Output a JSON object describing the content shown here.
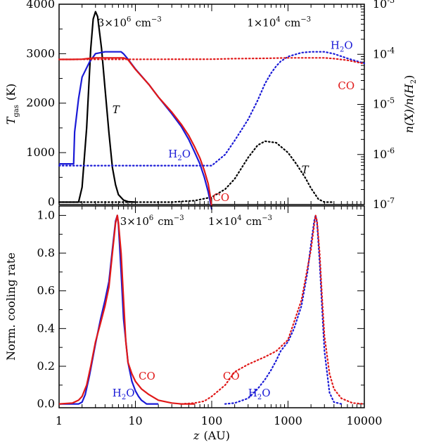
{
  "colors": {
    "T": "#000000",
    "H2O": "#1a1ad6",
    "CO": "#e01818"
  },
  "chart_data": [
    {
      "id": "top",
      "type": "line",
      "xscale": "log",
      "xlim": [
        1,
        10000
      ],
      "ylim": [
        -50,
        4000
      ],
      "y2scale": "log",
      "y2lim": [
        1e-07,
        0.001
      ],
      "ylabel": {
        "main": "T",
        "sub": "gas",
        "unit": "(K)"
      },
      "y2label": {
        "pre": "n(X)/n(H",
        "sub": "2",
        "post": ")"
      },
      "yticks": [
        0,
        1000,
        2000,
        3000,
        4000
      ],
      "y2ticks": [
        {
          "value": 1e-07,
          "base": "10",
          "exp": "-7"
        },
        {
          "value": 1e-06,
          "base": "10",
          "exp": "-6"
        },
        {
          "value": 1e-05,
          "base": "10",
          "exp": "-5"
        },
        {
          "value": 0.0001,
          "base": "10",
          "exp": "-4"
        },
        {
          "value": 0.001,
          "base": "10",
          "exp": "-3"
        }
      ],
      "series": [
        {
          "name": "T (3e6 cm^-3)",
          "color": "T",
          "dash": false,
          "axis": "left",
          "x": [
            1.0,
            1.8,
            2.0,
            2.3,
            2.6,
            2.8,
            3.0,
            3.2,
            3.6,
            4.0,
            4.5,
            5.0,
            5.5,
            6.0,
            7.0,
            8.0,
            10.0
          ],
          "y": [
            0,
            0,
            300,
            1500,
            3100,
            3700,
            3850,
            3750,
            3100,
            2300,
            1400,
            700,
            350,
            150,
            40,
            10,
            0
          ]
        },
        {
          "name": "T (1e4 cm^-3)",
          "color": "T",
          "dash": true,
          "axis": "left",
          "x": [
            1.0,
            10,
            30,
            60,
            100,
            150,
            200,
            300,
            400,
            500,
            700,
            1000,
            1300,
            1700,
            2000,
            2500,
            3000,
            4000
          ],
          "y": [
            0,
            0,
            0,
            30,
            100,
            260,
            470,
            900,
            1150,
            1230,
            1200,
            1000,
            760,
            480,
            280,
            60,
            0,
            0
          ]
        },
        {
          "name": "H2O (3e6 cm^-3)",
          "color": "H2O",
          "dash": false,
          "axis": "right",
          "x": [
            1.0,
            1.55,
            1.6,
            1.8,
            2.0,
            2.5,
            3.0,
            4.0,
            6.5,
            7.0,
            8.0,
            10,
            15,
            20,
            30,
            40,
            50,
            60,
            70,
            80,
            90,
            95,
            100
          ],
          "y": [
            6.5e-07,
            6.5e-07,
            2.8e-06,
            1.3e-05,
            3.5e-05,
            7e-05,
            0.000103,
            0.000112,
            0.000112,
            0.000102,
            8e-05,
            5.1e-05,
            2.5e-05,
            1.4e-05,
            6.5e-06,
            3.6e-06,
            2e-06,
            1.1e-06,
            6.5e-07,
            3.5e-07,
            1.8e-07,
            1.2e-07,
            8e-08
          ]
        },
        {
          "name": "CO (3e6 cm^-3)",
          "color": "CO",
          "dash": false,
          "axis": "right",
          "x": [
            1.0,
            1.5,
            2.0,
            2.5,
            3.0,
            5.0,
            7.0,
            8.0,
            10,
            15,
            20,
            30,
            40,
            50,
            60,
            70,
            80,
            90,
            95,
            100
          ],
          "y": [
            7.9e-05,
            7.9e-05,
            8e-05,
            8.3e-05,
            8.5e-05,
            8.5e-05,
            8.5e-05,
            7.8e-05,
            5e-05,
            2.5e-05,
            1.4e-05,
            7e-06,
            4e-06,
            2.4e-06,
            1.4e-06,
            8.5e-07,
            4.8e-07,
            2.6e-07,
            1.6e-07,
            9e-08
          ]
        },
        {
          "name": "H2O (1e4 cm^-3)",
          "color": "H2O",
          "dash": true,
          "axis": "right",
          "x": [
            1.0,
            100,
            150,
            200,
            300,
            400,
            500,
            600,
            700,
            800,
            1000,
            1500,
            2000,
            3000,
            4000,
            6000,
            10000
          ],
          "y": [
            6e-07,
            6e-07,
            1e-06,
            1.9e-06,
            5e-06,
            1.2e-05,
            2.6e-05,
            4.2e-05,
            5.8e-05,
            7.2e-05,
            9e-05,
            0.000108,
            0.000112,
            0.000112,
            0.000102,
            8.3e-05,
            6.6e-05
          ]
        },
        {
          "name": "CO (1e4 cm^-3)",
          "color": "CO",
          "dash": true,
          "axis": "right",
          "x": [
            1.0,
            100,
            200,
            500,
            1000,
            2000,
            3000,
            4000,
            6000,
            10000
          ],
          "y": [
            7.9e-05,
            8e-05,
            8.2e-05,
            8.3e-05,
            8.5e-05,
            8.5e-05,
            8.5e-05,
            8.2e-05,
            7.6e-05,
            6.5e-05
          ]
        }
      ],
      "annotations": [
        {
          "kind": "density",
          "coef": "3×10",
          "exp": "6",
          "unit": "cm",
          "uexp": "−3",
          "x": 3.2,
          "y": 3550,
          "color": "T"
        },
        {
          "kind": "density",
          "coef": "1×10",
          "exp": "4",
          "unit": "cm",
          "uexp": "−3",
          "x": 290,
          "y": 3550,
          "color": "T"
        },
        {
          "kind": "species",
          "main": "H",
          "sub": "2",
          "post": "O",
          "x": 3600,
          "y": 3100,
          "color": "H2O"
        },
        {
          "kind": "species",
          "main": "CO",
          "x": 4500,
          "y": 2280,
          "color": "CO"
        },
        {
          "kind": "species",
          "main": "T",
          "italic": true,
          "x": 5.0,
          "y": 1800,
          "color": "T"
        },
        {
          "kind": "species",
          "main": "H",
          "sub": "2",
          "post": "O",
          "x": 27,
          "y": 900,
          "color": "H2O"
        },
        {
          "kind": "species",
          "main": "T",
          "italic": true,
          "x": 1500,
          "y": 580,
          "color": "T"
        },
        {
          "kind": "species",
          "main": "CO",
          "x": 103,
          "y": 20,
          "color": "CO"
        }
      ]
    },
    {
      "id": "bottom",
      "type": "line",
      "xscale": "log",
      "xlim": [
        1,
        10000
      ],
      "ylim": [
        -0.02,
        1.05
      ],
      "ylabel": {
        "main": "Norm. cooling rate"
      },
      "xlabel": {
        "italic": "z",
        "unit": "(AU)"
      },
      "yticks": [
        0.0,
        0.2,
        0.4,
        0.6,
        0.8,
        1.0
      ],
      "ytick_labels": [
        "0.0",
        "0.2",
        "0.4",
        "0.6",
        "0.8",
        "1.0"
      ],
      "xticks": [
        1,
        10,
        100,
        1000,
        10000
      ],
      "xtick_labels": [
        "1",
        "10",
        "100",
        "1000",
        "10000"
      ],
      "series": [
        {
          "name": "H2O (3e6 cm^-3)",
          "color": "H2O",
          "dash": false,
          "x": [
            1.0,
            1.8,
            2.0,
            2.2,
            2.5,
            3.0,
            3.5,
            4.0,
            4.5,
            5.0,
            5.5,
            5.8,
            6.0,
            6.5,
            7.0,
            8.0,
            9.0,
            10,
            11,
            12,
            13,
            14,
            16,
            20
          ],
          "y": [
            0,
            0,
            0.01,
            0.05,
            0.15,
            0.32,
            0.45,
            0.55,
            0.65,
            0.82,
            0.97,
            1.0,
            0.95,
            0.7,
            0.45,
            0.22,
            0.12,
            0.07,
            0.04,
            0.02,
            0.01,
            0.0,
            0.0,
            0.0
          ]
        },
        {
          "name": "CO (3e6 cm^-3)",
          "color": "CO",
          "dash": false,
          "x": [
            1.0,
            1.5,
            1.8,
            2.0,
            2.3,
            2.6,
            3.0,
            3.5,
            4.0,
            4.5,
            5.0,
            5.5,
            5.8,
            6.0,
            6.5,
            7.0,
            7.5,
            8.0,
            9.0,
            10,
            12,
            15,
            20,
            30,
            40,
            60
          ],
          "y": [
            0,
            0.005,
            0.02,
            0.04,
            0.1,
            0.2,
            0.33,
            0.43,
            0.52,
            0.62,
            0.8,
            0.96,
            1.0,
            0.96,
            0.8,
            0.55,
            0.33,
            0.22,
            0.16,
            0.12,
            0.08,
            0.05,
            0.02,
            0.005,
            0.0,
            0.0
          ]
        },
        {
          "name": "H2O (1e4 cm^-3)",
          "color": "H2O",
          "dash": true,
          "x": [
            150,
            200,
            300,
            400,
            500,
            600,
            700,
            800,
            1000,
            1200,
            1500,
            1800,
            2000,
            2200,
            2300,
            2400,
            2600,
            2800,
            3000,
            3500,
            4000,
            5000
          ],
          "y": [
            0,
            0.005,
            0.03,
            0.08,
            0.13,
            0.18,
            0.23,
            0.28,
            0.33,
            0.4,
            0.52,
            0.7,
            0.85,
            0.97,
            1.0,
            0.96,
            0.75,
            0.5,
            0.28,
            0.06,
            0.01,
            0.0
          ]
        },
        {
          "name": "CO (1e4 cm^-3)",
          "color": "CO",
          "dash": true,
          "x": [
            40,
            60,
            80,
            100,
            150,
            200,
            300,
            500,
            700,
            1000,
            1500,
            2000,
            2200,
            2300,
            2400,
            2600,
            2800,
            3000,
            3500,
            4000,
            5000,
            7000,
            10000
          ],
          "y": [
            0,
            0.005,
            0.015,
            0.04,
            0.1,
            0.17,
            0.21,
            0.25,
            0.28,
            0.34,
            0.55,
            0.82,
            0.95,
            1.0,
            0.97,
            0.8,
            0.56,
            0.36,
            0.16,
            0.08,
            0.03,
            0.005,
            0.0
          ]
        }
      ],
      "annotations": [
        {
          "kind": "density",
          "coef": "3×10",
          "exp": "6",
          "unit": "cm",
          "uexp": "−3",
          "x": 6.3,
          "y": 0.95,
          "color": "T"
        },
        {
          "kind": "density",
          "coef": "1×10",
          "exp": "4",
          "unit": "cm",
          "uexp": "−3",
          "x": 90,
          "y": 0.95,
          "color": "T"
        },
        {
          "kind": "species",
          "main": "CO",
          "x": 11,
          "y": 0.13,
          "color": "CO"
        },
        {
          "kind": "species",
          "main": "CO",
          "x": 140,
          "y": 0.13,
          "color": "CO"
        },
        {
          "kind": "species",
          "main": "H",
          "sub": "2",
          "post": "O",
          "x": 5.0,
          "y": 0.04,
          "color": "H2O"
        },
        {
          "kind": "species",
          "main": "H",
          "sub": "2",
          "post": "O",
          "x": 300,
          "y": 0.04,
          "color": "H2O"
        }
      ]
    }
  ]
}
